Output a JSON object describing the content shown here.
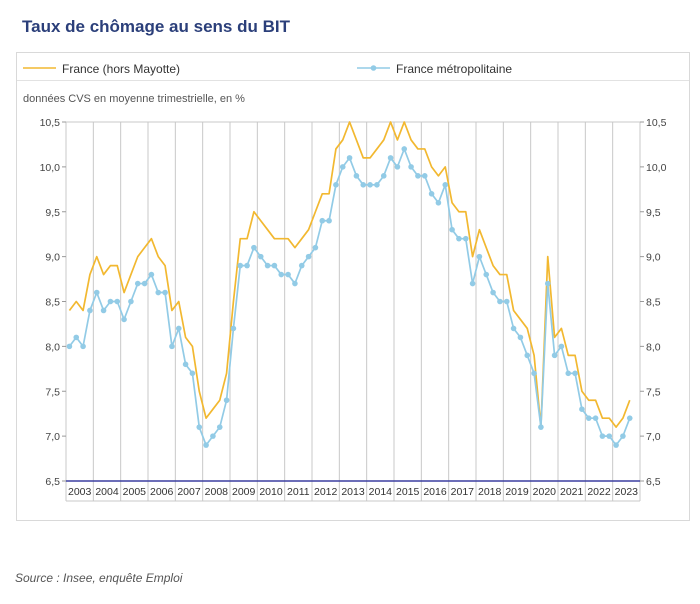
{
  "header": {
    "title": "Taux de chômage au sens du BIT"
  },
  "footer": {
    "source": "Source : Insee, enquête Emploi"
  },
  "colors": {
    "title": "#2b3f7a",
    "series_france": "#f2b830",
    "series_metro": "#92cbe6",
    "baseline": "#3b3fa0",
    "grid": "#c8c8c8"
  },
  "chart_data": {
    "type": "line",
    "subtitle": "données CVS en moyenne trimestrielle, en %",
    "ylim": [
      6.5,
      10.5
    ],
    "y_ticks": [
      "6,5",
      "7,0",
      "7,5",
      "8,0",
      "8,5",
      "9,0",
      "9,5",
      "10,0",
      "10,5"
    ],
    "y_tick_values": [
      6.5,
      7.0,
      7.5,
      8.0,
      8.5,
      9.0,
      9.5,
      10.0,
      10.5
    ],
    "x_ticks": [
      "2003",
      "2004",
      "2005",
      "2006",
      "2007",
      "2008",
      "2009",
      "2010",
      "2011",
      "2012",
      "2013",
      "2014",
      "2015",
      "2016",
      "2017",
      "2018",
      "2019",
      "2020",
      "2021",
      "2022",
      "2023"
    ],
    "grid": "vertical lines between years",
    "legend_position": "top",
    "x_start": "2003-T1",
    "x_end": "2023-T2",
    "series": [
      {
        "name": "France (hors Mayotte)",
        "marker": false,
        "values": [
          8.4,
          8.5,
          8.4,
          8.8,
          9.0,
          8.8,
          8.9,
          8.9,
          8.6,
          8.8,
          9.0,
          9.1,
          9.2,
          9.0,
          8.9,
          8.4,
          8.5,
          8.1,
          8.0,
          7.5,
          7.2,
          7.3,
          7.4,
          7.7,
          8.5,
          9.2,
          9.2,
          9.5,
          9.4,
          9.3,
          9.2,
          9.2,
          9.2,
          9.1,
          9.2,
          9.3,
          9.5,
          9.7,
          9.7,
          10.2,
          10.3,
          10.5,
          10.3,
          10.1,
          10.1,
          10.2,
          10.3,
          10.5,
          10.3,
          10.5,
          10.3,
          10.2,
          10.2,
          10.0,
          9.9,
          10.0,
          9.6,
          9.5,
          9.5,
          9.0,
          9.3,
          9.1,
          8.9,
          8.8,
          8.8,
          8.4,
          8.3,
          8.2,
          7.9,
          7.1,
          9.0,
          8.1,
          8.2,
          7.9,
          7.9,
          7.5,
          7.4,
          7.4,
          7.2,
          7.2,
          7.1,
          7.2,
          7.4
        ]
      },
      {
        "name": "France métropolitaine",
        "marker": true,
        "values": [
          8.0,
          8.1,
          8.0,
          8.4,
          8.6,
          8.4,
          8.5,
          8.5,
          8.3,
          8.5,
          8.7,
          8.7,
          8.8,
          8.6,
          8.6,
          8.0,
          8.2,
          7.8,
          7.7,
          7.1,
          6.9,
          7.0,
          7.1,
          7.4,
          8.2,
          8.9,
          8.9,
          9.1,
          9.0,
          8.9,
          8.9,
          8.8,
          8.8,
          8.7,
          8.9,
          9.0,
          9.1,
          9.4,
          9.4,
          9.8,
          10.0,
          10.1,
          9.9,
          9.8,
          9.8,
          9.8,
          9.9,
          10.1,
          10.0,
          10.2,
          10.0,
          9.9,
          9.9,
          9.7,
          9.6,
          9.8,
          9.3,
          9.2,
          9.2,
          8.7,
          9.0,
          8.8,
          8.6,
          8.5,
          8.5,
          8.2,
          8.1,
          7.9,
          7.7,
          7.1,
          8.7,
          7.9,
          8.0,
          7.7,
          7.7,
          7.3,
          7.2,
          7.2,
          7.0,
          7.0,
          6.9,
          7.0,
          7.2
        ]
      }
    ]
  }
}
